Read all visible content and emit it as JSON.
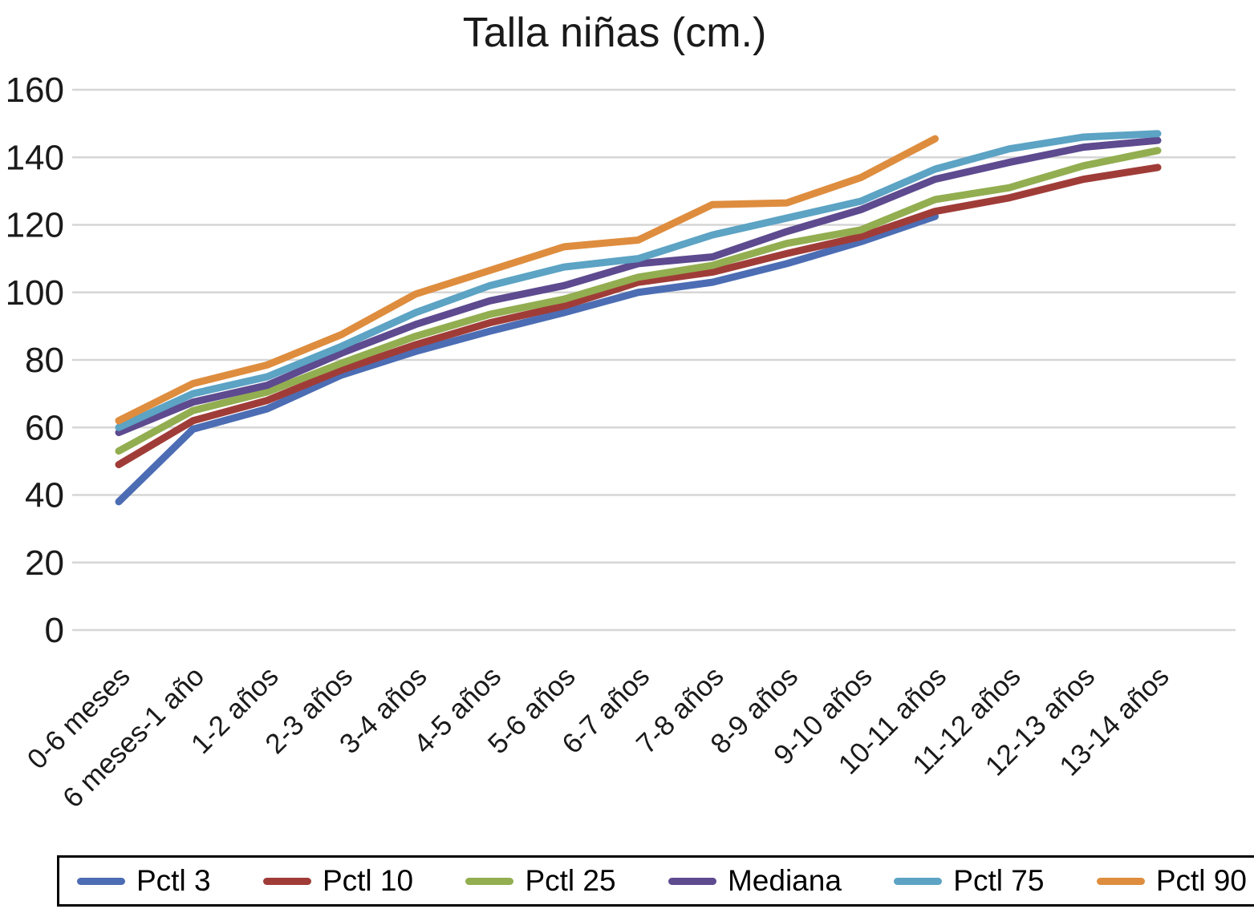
{
  "chart_data": {
    "type": "line",
    "title": "Talla niñas (cm.)",
    "xlabel": "",
    "ylabel": "",
    "categories": [
      "0-6 meses",
      "6 meses-1 año",
      "1-2 años",
      "2-3 años",
      "3-4 años",
      "4-5 años",
      "5-6 años",
      "6-7 años",
      "7-8 años",
      "8-9 años",
      "9-10 años",
      "10-11 años",
      "11-12 años",
      "12-13 años",
      "13-14 años"
    ],
    "series": [
      {
        "name": "Pctl 3",
        "color": "#4C6DB4",
        "values": [
          38,
          59.5,
          65.5,
          75.5,
          82.5,
          88.5,
          94,
          100,
          103,
          108.5,
          115,
          122.5,
          null,
          null,
          null
        ]
      },
      {
        "name": "Pctl 10",
        "color": "#A03C38",
        "values": [
          49,
          62,
          68,
          77,
          84.5,
          91,
          96,
          103,
          106,
          111.5,
          116.5,
          124,
          128,
          133.5,
          137
        ]
      },
      {
        "name": "Pctl 25",
        "color": "#92AE50",
        "values": [
          53,
          65,
          70.5,
          79,
          87,
          93.5,
          98,
          104.5,
          108,
          114.5,
          118.5,
          127.5,
          131,
          137.5,
          142
        ]
      },
      {
        "name": "Mediana",
        "color": "#5D4A8F",
        "values": [
          58.5,
          67.5,
          72.5,
          82,
          90.5,
          97.5,
          102,
          108.5,
          110.5,
          118,
          124.5,
          133.5,
          138.5,
          143,
          145
        ]
      },
      {
        "name": "Pctl 75",
        "color": "#5CA3C4",
        "values": [
          60,
          70,
          75,
          84,
          94,
          102,
          107.5,
          110,
          117,
          122,
          127,
          136.5,
          142.5,
          146,
          147
        ]
      },
      {
        "name": "Pctl 90",
        "color": "#DE8D3E",
        "values": [
          62,
          73,
          78.5,
          87.5,
          99.5,
          106.5,
          113.5,
          115.5,
          126,
          126.5,
          134,
          145.5,
          null,
          null,
          null
        ]
      }
    ],
    "ylim": [
      0,
      160
    ],
    "yticks": [
      0,
      20,
      40,
      60,
      80,
      100,
      120,
      140,
      160
    ],
    "grid": true,
    "legend_position": "bottom"
  },
  "colors": {
    "gridline": "#D6D6D6",
    "text": "#1A1A1A",
    "legend_border": "#000000",
    "background": "#FFFFFF"
  }
}
